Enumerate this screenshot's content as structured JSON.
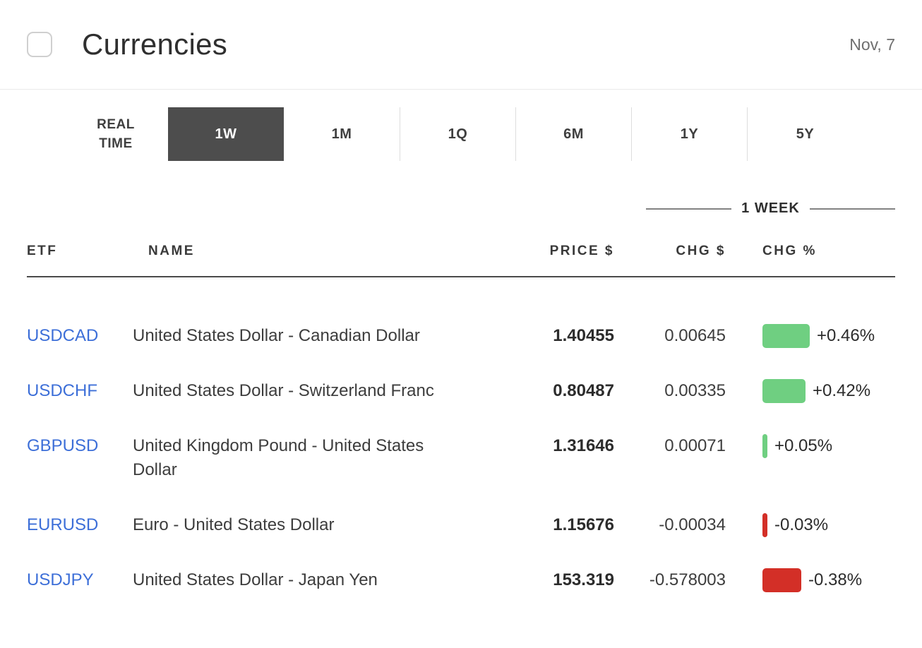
{
  "header": {
    "title": "Currencies",
    "date": "Nov, 7"
  },
  "tabs": {
    "realtime_label_line1": "REAL",
    "realtime_label_line2": "TIME",
    "items": [
      {
        "label": "1W",
        "active": true
      },
      {
        "label": "1M",
        "active": false
      },
      {
        "label": "1Q",
        "active": false
      },
      {
        "label": "6M",
        "active": false
      },
      {
        "label": "1Y",
        "active": false
      },
      {
        "label": "5Y",
        "active": false
      }
    ]
  },
  "table": {
    "group_header": "1 WEEK",
    "columns": [
      "ETF",
      "NAME",
      "PRICE $",
      "CHG $",
      "CHG %"
    ],
    "rows": [
      {
        "etf": "USDCAD",
        "name": "United States Dollar - Canadian Dollar",
        "price": "1.40455",
        "chg": "0.00645",
        "chg_pct": 0.46,
        "chg_pct_label": "+0.46%"
      },
      {
        "etf": "USDCHF",
        "name": "United States Dollar - Switzerland Franc",
        "price": "0.80487",
        "chg": "0.00335",
        "chg_pct": 0.42,
        "chg_pct_label": "+0.42%"
      },
      {
        "etf": "GBPUSD",
        "name": "United Kingdom Pound - United States Dollar",
        "price": "1.31646",
        "chg": "0.00071",
        "chg_pct": 0.05,
        "chg_pct_label": "+0.05%"
      },
      {
        "etf": "EURUSD",
        "name": "Euro - United States Dollar",
        "price": "1.15676",
        "chg": "-0.00034",
        "chg_pct": -0.03,
        "chg_pct_label": "-0.03%"
      },
      {
        "etf": "USDJPY",
        "name": "United States Dollar - Japan Yen",
        "price": "153.319",
        "chg": "-0.578003",
        "chg_pct": -0.38,
        "chg_pct_label": "-0.38%"
      }
    ]
  },
  "colors": {
    "positive": "#6fcf81",
    "negative": "#d32f27",
    "link": "#3d6fd8",
    "tab_active_bg": "#4d4d4d"
  }
}
